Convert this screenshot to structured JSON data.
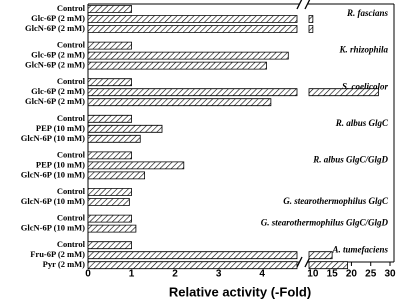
{
  "chart_data": {
    "type": "bar",
    "orientation": "horizontal",
    "xlabel": "Relative activity (-Fold)",
    "xlim": [
      0,
      30
    ],
    "xbreak": [
      4.8,
      9
    ],
    "xticks": [
      0,
      1,
      2,
      3,
      4,
      10,
      15,
      20,
      25,
      30
    ],
    "color": "#000000",
    "groups": [
      {
        "label": "R. fascians",
        "categories": [
          "Control",
          "Glc-6P (2 mM)",
          "GlcN-6P (2 mM)"
        ],
        "values": [
          1,
          10,
          10
        ]
      },
      {
        "label": "K. rhizophila",
        "categories": [
          "Control",
          "Glc-6P (2 mM)",
          "GlcN-6P (2 mM)"
        ],
        "values": [
          1,
          4.6,
          4.1
        ]
      },
      {
        "label": "S. coelicolor",
        "categories": [
          "Control",
          "Glc-6P (2 mM)",
          "GlcN-6P (2 mM)"
        ],
        "values": [
          1,
          27,
          4.2
        ]
      },
      {
        "label": "R. albus GlgC",
        "categories": [
          "Control",
          "PEP (10 mM)",
          "GlcN-6P (10 mM)"
        ],
        "values": [
          1,
          1.7,
          1.2
        ]
      },
      {
        "label": "R. albus GlgC/GlgD",
        "categories": [
          "Control",
          "PEP (10 mM)",
          "GlcN-6P (10 mM)"
        ],
        "values": [
          1,
          2.2,
          1.3
        ]
      },
      {
        "label": "G. stearothermophilus GlgC",
        "categories": [
          "Control",
          "GlcN-6P (10 mM)"
        ],
        "values": [
          1,
          0.95
        ]
      },
      {
        "label": "G. stearothermophilus GlgC/GlgD",
        "categories": [
          "Control",
          "GlcN-6P (10 mM)"
        ],
        "values": [
          1,
          1.1
        ]
      },
      {
        "label": "A. tumefaciens",
        "categories": [
          "Control",
          "Fru-6P (2 mM)",
          "Pyr (2 mM)"
        ],
        "values": [
          1,
          15,
          19
        ]
      }
    ]
  }
}
